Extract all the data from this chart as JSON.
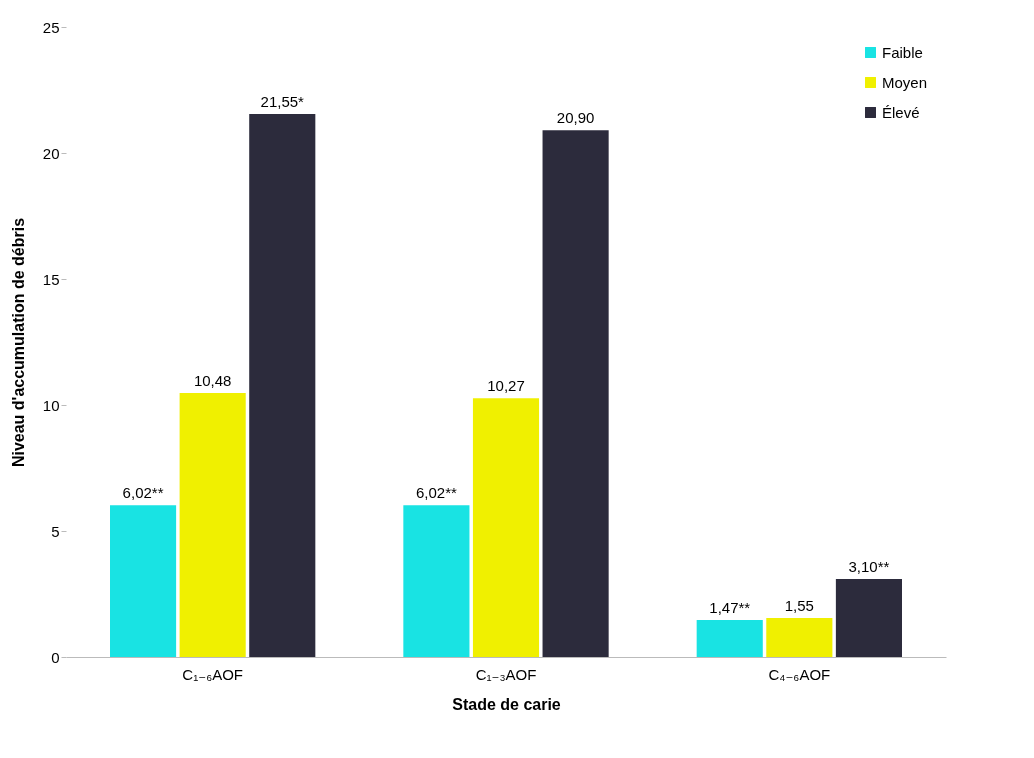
{
  "chart_data": {
    "type": "bar",
    "xlabel": "Stade de carie",
    "ylabel": "Niveau d'accumulation de débris",
    "categories": [
      "C₁₋₆AOF",
      "C₁₋₃AOF",
      "C₄₋₆AOF"
    ],
    "series": [
      {
        "name": "Faible",
        "color": "#19e3e3",
        "values": [
          6.02,
          6.02,
          1.47
        ],
        "value_labels": [
          "6,02**",
          "6,02**",
          "1,47**"
        ]
      },
      {
        "name": "Moyen",
        "color": "#f0f000",
        "values": [
          10.48,
          10.27,
          1.55
        ],
        "value_labels": [
          "10,48",
          "10,27",
          "1,55"
        ]
      },
      {
        "name": "Élevé",
        "color": "#2c2b3c",
        "values": [
          21.55,
          20.9,
          3.1
        ],
        "value_labels": [
          "21,55*",
          "20,90",
          "3,10**"
        ]
      }
    ],
    "ylim": [
      0,
      25
    ],
    "yticks": [
      0,
      5,
      10,
      15,
      20,
      25
    ],
    "grid": false,
    "legend": "top right"
  }
}
